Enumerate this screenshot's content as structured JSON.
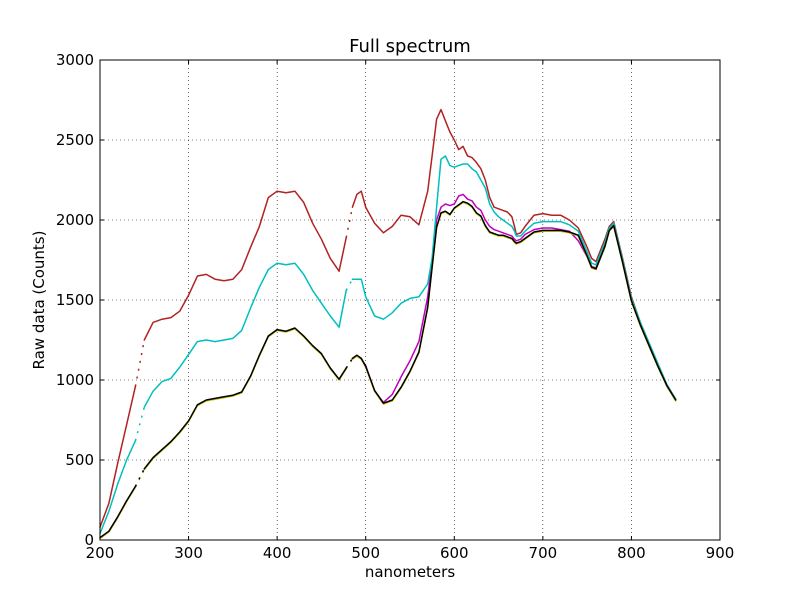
{
  "chart_data": {
    "type": "line",
    "title": "Full spectrum",
    "xlabel": "nanometers",
    "ylabel": "Raw data (Counts)",
    "xlim": [
      200,
      900
    ],
    "ylim": [
      0,
      3000
    ],
    "xticks": [
      200,
      300,
      400,
      500,
      600,
      700,
      800,
      900
    ],
    "yticks": [
      0,
      500,
      1000,
      1500,
      2000,
      2500,
      3000
    ],
    "grid": true,
    "gaps": [
      [
        240,
        250
      ],
      [
        478,
        485
      ]
    ],
    "series": [
      {
        "color": "#b22222",
        "x": [
          200,
          210,
          220,
          230,
          240,
          250,
          260,
          270,
          280,
          290,
          300,
          310,
          320,
          330,
          340,
          350,
          360,
          370,
          380,
          390,
          400,
          410,
          420,
          430,
          440,
          450,
          460,
          470,
          478,
          485,
          490,
          495,
          500,
          510,
          520,
          530,
          540,
          550,
          560,
          570,
          575,
          580,
          585,
          590,
          595,
          600,
          605,
          610,
          615,
          620,
          625,
          630,
          635,
          640,
          645,
          650,
          655,
          660,
          665,
          668,
          670,
          675,
          680,
          690,
          700,
          710,
          720,
          730,
          740,
          750,
          755,
          760,
          770,
          775,
          780,
          790,
          800,
          810,
          820,
          830,
          840,
          850
        ],
        "y": [
          80,
          230,
          480,
          720,
          960,
          1250,
          1360,
          1380,
          1390,
          1430,
          1530,
          1650,
          1660,
          1630,
          1620,
          1630,
          1690,
          1830,
          1960,
          2140,
          2180,
          2170,
          2180,
          2110,
          1980,
          1880,
          1760,
          1680,
          1890,
          2080,
          2160,
          2180,
          2080,
          1980,
          1920,
          1960,
          2030,
          2020,
          1970,
          2180,
          2400,
          2630,
          2690,
          2620,
          2550,
          2500,
          2440,
          2460,
          2400,
          2390,
          2360,
          2320,
          2250,
          2140,
          2080,
          2070,
          2060,
          2050,
          2020,
          1960,
          1910,
          1920,
          1960,
          2030,
          2040,
          2030,
          2030,
          2000,
          1950,
          1830,
          1760,
          1740,
          1880,
          1960,
          1990,
          1760,
          1520,
          1360,
          1230,
          1100,
          970,
          880
        ]
      },
      {
        "color": "#bf00bf",
        "x": [
          485,
          490,
          495,
          500,
          510,
          520,
          530,
          540,
          550,
          560,
          570,
          575,
          580,
          585,
          590,
          595,
          600,
          605,
          610,
          615,
          620,
          625,
          630,
          635,
          640,
          645,
          650,
          655,
          660,
          665,
          668,
          670,
          675,
          680,
          690,
          700,
          710,
          720,
          730,
          740,
          750,
          755,
          760,
          770,
          775,
          780,
          790,
          800,
          810,
          820,
          830,
          840,
          850
        ],
        "y": [
          1130,
          1150,
          1130,
          1090,
          930,
          860,
          910,
          1020,
          1120,
          1240,
          1520,
          1740,
          2000,
          2080,
          2100,
          2090,
          2100,
          2150,
          2160,
          2130,
          2120,
          2080,
          2060,
          2000,
          1960,
          1940,
          1930,
          1920,
          1910,
          1900,
          1880,
          1870,
          1880,
          1910,
          1940,
          1950,
          1950,
          1940,
          1930,
          1870,
          1770,
          1710,
          1700,
          1850,
          1940,
          1970,
          1740,
          1500,
          1350,
          1220,
          1090,
          960,
          880
        ]
      },
      {
        "color": "#00bfbf",
        "x": [
          200,
          210,
          220,
          230,
          240,
          250,
          260,
          270,
          280,
          290,
          300,
          310,
          320,
          330,
          340,
          350,
          360,
          370,
          380,
          390,
          400,
          410,
          420,
          430,
          440,
          450,
          460,
          470,
          478,
          485,
          490,
          495,
          500,
          510,
          520,
          530,
          540,
          550,
          560,
          570,
          575,
          580,
          585,
          590,
          595,
          600,
          605,
          610,
          615,
          620,
          625,
          630,
          635,
          640,
          645,
          650,
          655,
          660,
          665,
          668,
          670,
          675,
          680,
          690,
          700,
          710,
          720,
          730,
          740,
          750,
          755,
          760,
          770,
          775,
          780,
          790,
          800,
          810,
          820,
          830,
          840,
          850
        ],
        "y": [
          40,
          180,
          350,
          500,
          620,
          830,
          930,
          990,
          1010,
          1080,
          1160,
          1240,
          1250,
          1240,
          1250,
          1260,
          1310,
          1450,
          1580,
          1690,
          1730,
          1720,
          1730,
          1660,
          1560,
          1480,
          1400,
          1330,
          1560,
          1630,
          1630,
          1630,
          1520,
          1400,
          1380,
          1420,
          1480,
          1510,
          1520,
          1600,
          1760,
          2080,
          2380,
          2400,
          2340,
          2330,
          2340,
          2350,
          2350,
          2320,
          2300,
          2250,
          2200,
          2100,
          2050,
          2020,
          2000,
          1980,
          1960,
          1930,
          1900,
          1900,
          1930,
          1980,
          1990,
          1990,
          1990,
          1970,
          1930,
          1800,
          1730,
          1720,
          1860,
          1950,
          1980,
          1750,
          1510,
          1360,
          1230,
          1100,
          970,
          880
        ]
      },
      {
        "color": "#bfbf00",
        "x": [
          200,
          210,
          220,
          230,
          240,
          250,
          260,
          270,
          280,
          290,
          300,
          310,
          320,
          330,
          340,
          350,
          360,
          370,
          380,
          390,
          400,
          410,
          420,
          430,
          440,
          450,
          460,
          470,
          478,
          485,
          490,
          495,
          500,
          510,
          520,
          530,
          540,
          550,
          560,
          570,
          575,
          580,
          585,
          590,
          595,
          600,
          605,
          610,
          615,
          620,
          625,
          630,
          635,
          640,
          645,
          650,
          655,
          660,
          665,
          668,
          670,
          675,
          680,
          690,
          700,
          710,
          720,
          730,
          740,
          750,
          755,
          760,
          770,
          775,
          780,
          790,
          800,
          810,
          820,
          830,
          840,
          850
        ],
        "y": [
          10,
          50,
          140,
          240,
          330,
          440,
          510,
          560,
          610,
          670,
          740,
          840,
          870,
          880,
          890,
          900,
          920,
          1020,
          1150,
          1270,
          1310,
          1300,
          1320,
          1270,
          1210,
          1160,
          1070,
          1000,
          1070,
          1130,
          1150,
          1130,
          1080,
          930,
          850,
          870,
          950,
          1050,
          1170,
          1450,
          1700,
          1950,
          2040,
          2050,
          2030,
          2070,
          2090,
          2110,
          2100,
          2080,
          2040,
          2020,
          1960,
          1920,
          1910,
          1900,
          1900,
          1890,
          1880,
          1860,
          1850,
          1860,
          1880,
          1920,
          1930,
          1930,
          1930,
          1920,
          1900,
          1770,
          1700,
          1690,
          1830,
          1930,
          1960,
          1730,
          1490,
          1340,
          1210,
          1080,
          960,
          870
        ]
      },
      {
        "color": "#000000",
        "x": [
          200,
          210,
          220,
          230,
          240,
          250,
          260,
          270,
          280,
          290,
          300,
          310,
          320,
          330,
          340,
          350,
          360,
          370,
          380,
          390,
          400,
          410,
          420,
          430,
          440,
          450,
          460,
          470,
          478,
          485,
          490,
          495,
          500,
          510,
          520,
          530,
          540,
          550,
          560,
          570,
          575,
          580,
          585,
          590,
          595,
          600,
          605,
          610,
          615,
          620,
          625,
          630,
          635,
          640,
          645,
          650,
          655,
          660,
          665,
          668,
          670,
          675,
          680,
          690,
          700,
          710,
          720,
          730,
          740,
          750,
          755,
          760,
          770,
          775,
          780,
          790,
          800,
          810,
          820,
          830,
          840,
          850
        ],
        "y": [
          15,
          55,
          145,
          245,
          335,
          445,
          515,
          565,
          615,
          675,
          745,
          845,
          875,
          885,
          895,
          905,
          925,
          1025,
          1155,
          1275,
          1315,
          1305,
          1325,
          1275,
          1215,
          1165,
          1075,
          1005,
          1075,
          1135,
          1155,
          1135,
          1085,
          935,
          855,
          875,
          955,
          1055,
          1175,
          1455,
          1705,
          1955,
          2045,
          2055,
          2035,
          2075,
          2095,
          2115,
          2105,
          2085,
          2045,
          2025,
          1965,
          1925,
          1915,
          1905,
          1905,
          1895,
          1885,
          1865,
          1855,
          1865,
          1885,
          1925,
          1935,
          1935,
          1935,
          1925,
          1905,
          1775,
          1705,
          1695,
          1835,
          1935,
          1965,
          1735,
          1495,
          1345,
          1215,
          1085,
          965,
          875
        ]
      }
    ]
  }
}
